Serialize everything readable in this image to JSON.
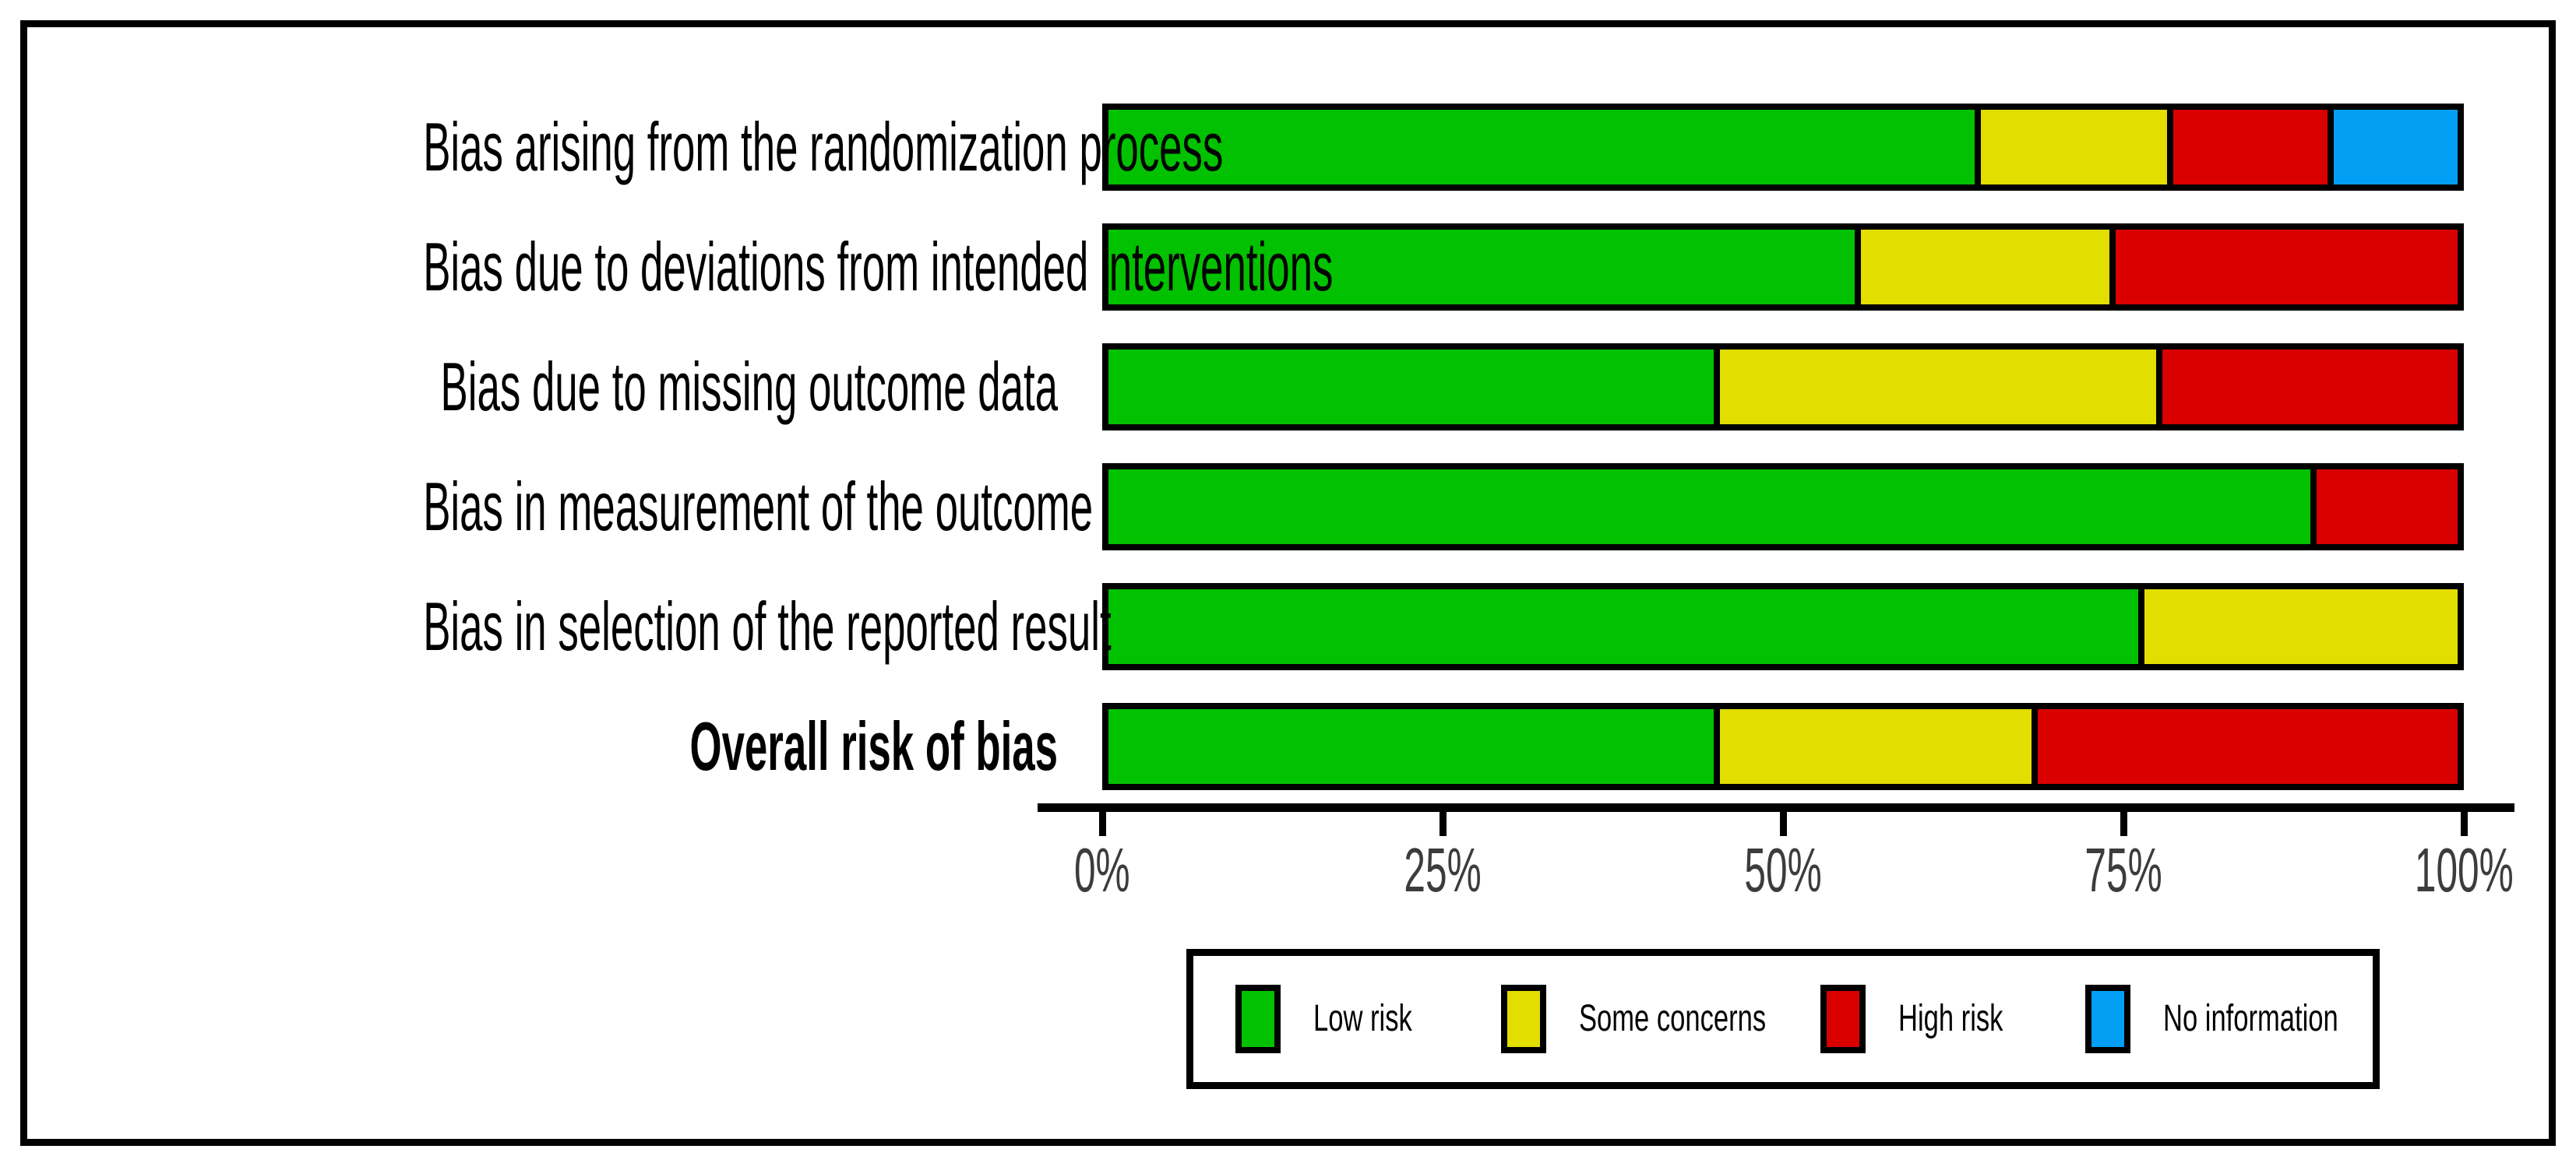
{
  "chart_data": {
    "type": "bar",
    "orientation": "horizontal",
    "stacked": true,
    "units": "percent",
    "title": "",
    "xlabel": "",
    "ylabel": "",
    "xlim": [
      0,
      100
    ],
    "x_tick_values": [
      0,
      25,
      50,
      75,
      100
    ],
    "x_tick_labels": [
      "0%",
      "25%",
      "50%",
      "75%",
      "100%"
    ],
    "grid": false,
    "legend_position": "bottom-center",
    "categories": [
      "Bias arising from the randomization process",
      "Bias due to deviations from intended interventions",
      "Bias due to missing outcome data",
      "Bias in measurement of the outcome",
      "Bias in selection of the reported result",
      "Overall risk of bias"
    ],
    "emphasized_category_index": 5,
    "series": [
      {
        "name": "Low risk",
        "color": "#02C100",
        "values": [
          65.1,
          55.8,
          45.3,
          89.5,
          76.7,
          45.3
        ]
      },
      {
        "name": "Some concerns",
        "color": "#E2DE00",
        "values": [
          14.0,
          18.6,
          32.6,
          0.0,
          23.3,
          23.3
        ]
      },
      {
        "name": "High risk",
        "color": "#DB0000",
        "values": [
          11.6,
          25.6,
          22.1,
          10.5,
          0.0,
          31.4
        ]
      },
      {
        "name": "No information",
        "color": "#029FF5",
        "values": [
          9.3,
          0.0,
          0.0,
          0.0,
          0.0,
          0.0
        ]
      }
    ]
  },
  "axis": {
    "tick_labels": [
      "0%",
      "25%",
      "50%",
      "75%",
      "100%"
    ],
    "label_color": "#3C3C3C"
  },
  "legend": {
    "items": [
      {
        "label": "Low risk",
        "color": "#02C100"
      },
      {
        "label": "Some concerns",
        "color": "#E2DE00"
      },
      {
        "label": "High risk",
        "color": "#DB0000"
      },
      {
        "label": "No information",
        "color": "#029FF5"
      }
    ]
  },
  "colors": {
    "background": "#FFFFFF",
    "frame_border": "#000000",
    "axis": "#000000"
  }
}
